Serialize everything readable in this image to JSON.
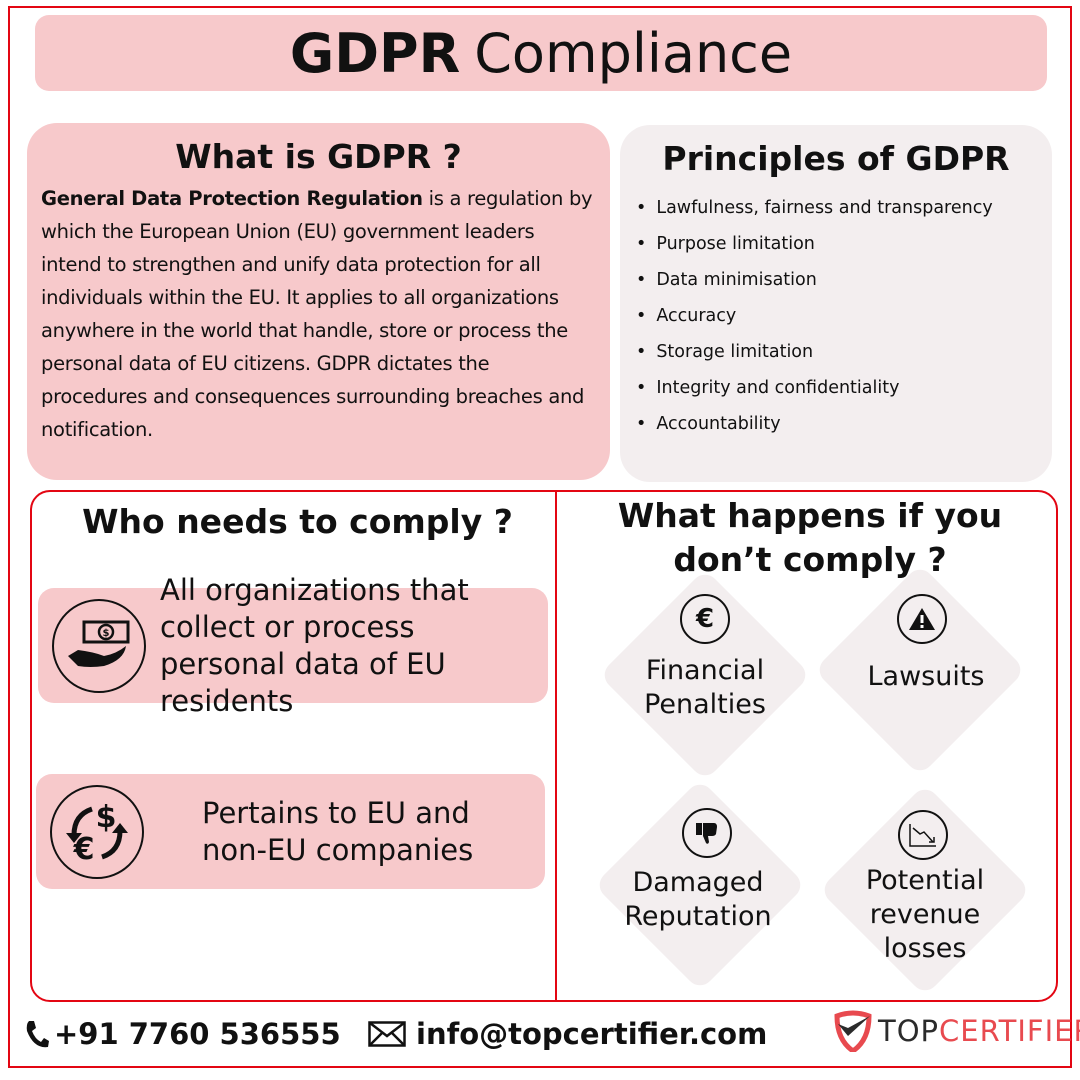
{
  "title": {
    "bold": "GDPR",
    "rest": "Compliance"
  },
  "what": {
    "heading": "What is GDPR ?",
    "lead": "General Data Protection Regulation",
    "body": " is a regulation by which the European Union (EU) government leaders intend to strengthen and unify data protection for all individuals within the EU. It applies to all organizations anywhere in the world that handle, store or process the personal data of EU citizens. GDPR dictates the procedures and consequences surrounding breaches and notification."
  },
  "principles": {
    "heading": "Principles of GDPR",
    "items": [
      "Lawfulness, fairness and transparency",
      "Purpose limitation",
      "Data minimisation",
      "Accuracy",
      "Storage limitation",
      "Integrity and confidentiality",
      "Accountability"
    ]
  },
  "who": {
    "heading": "Who needs to comply ?",
    "cards": [
      {
        "text": "All organizations that collect or process personal data of EU residents",
        "icon": "hand-money-icon"
      },
      {
        "text": "Pertains to EU and non-EU companies",
        "icon": "currency-exchange-icon"
      }
    ]
  },
  "consequences": {
    "heading": "What happens if you don’t comply ?",
    "items": [
      {
        "label": "Financial Penalties",
        "icon": "euro-icon"
      },
      {
        "label": "Lawsuits",
        "icon": "warning-icon"
      },
      {
        "label": "Damaged Reputation",
        "icon": "thumbs-down-icon"
      },
      {
        "label": "Potential revenue losses",
        "icon": "declining-chart-icon"
      }
    ]
  },
  "footer": {
    "phone": "+91 7760 536555",
    "email": "info@topcertifier.com",
    "logo": {
      "top": "TOP",
      "certifier": "CERTIFIER"
    }
  },
  "colors": {
    "accent": "#e30613",
    "pink": "#f7c9cb",
    "grey": "#f3eeef"
  }
}
